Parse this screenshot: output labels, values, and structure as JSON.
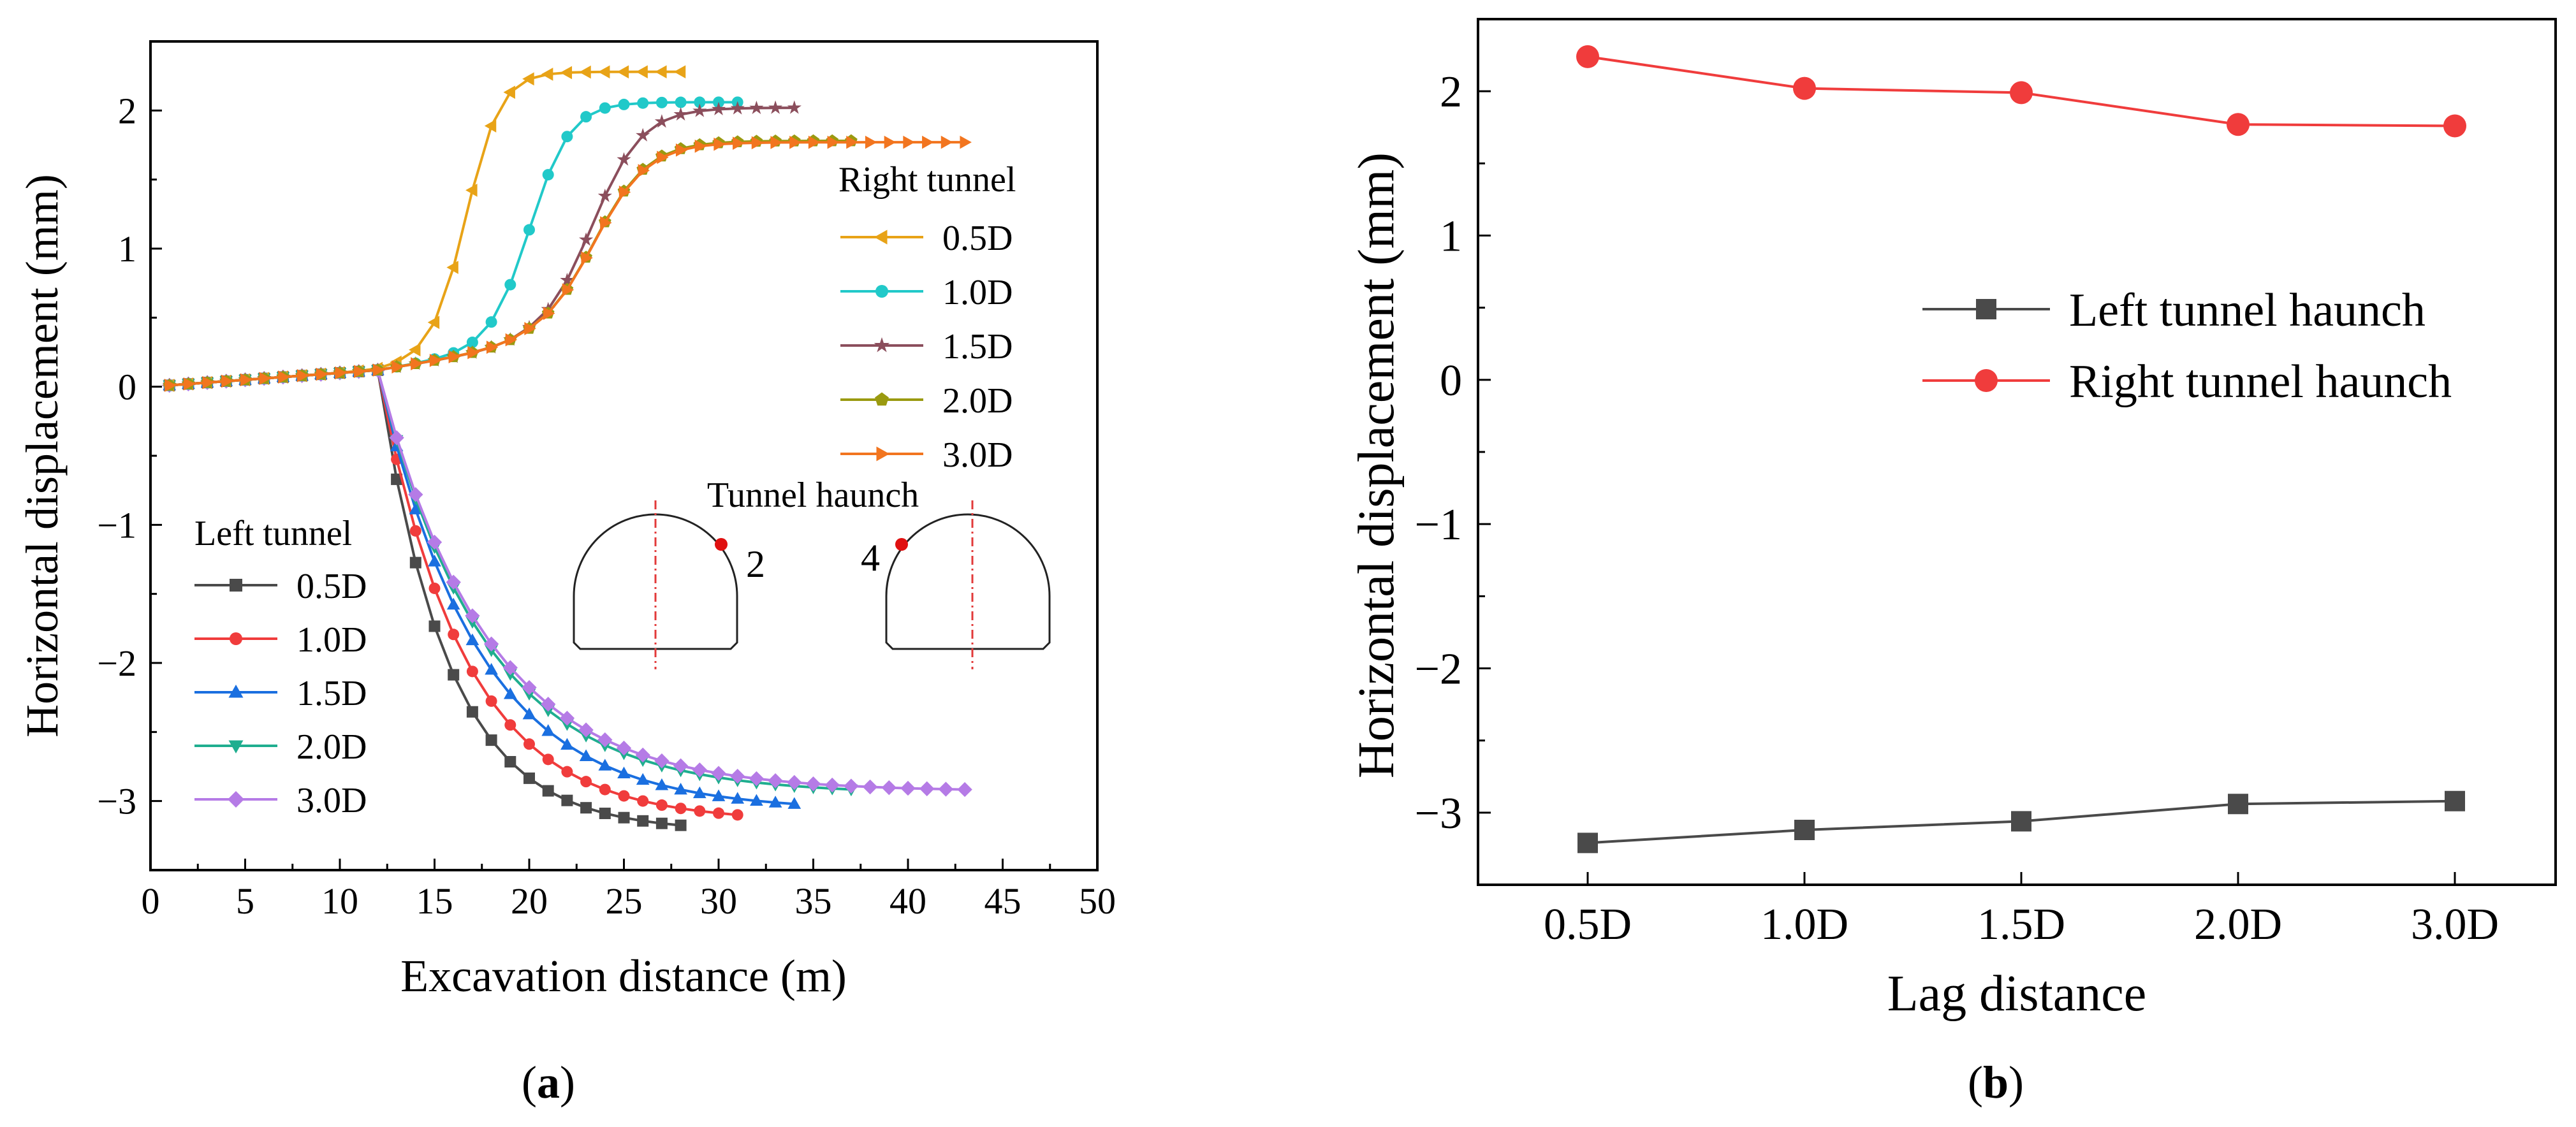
{
  "chart_data": [
    {
      "id": "a",
      "type": "line",
      "panel_label": "a",
      "xlabel": "Excavation distance (m)",
      "ylabel": "Horizontal displacement (mm)",
      "xlim": [
        0,
        50
      ],
      "ylim": [
        -3.5,
        2.5
      ],
      "xticks": [
        "0",
        "5",
        "10",
        "15",
        "20",
        "25",
        "30",
        "35",
        "40",
        "45",
        "50"
      ],
      "yticks": [
        "-3",
        "-2",
        "-1",
        "0",
        "1",
        "2"
      ],
      "grid": false,
      "legend_groups": [
        {
          "title": "Right tunnel",
          "entries": [
            "0.5D",
            "1.0D",
            "1.5D",
            "2.0D",
            "3.0D"
          ]
        },
        {
          "title": "Left tunnel",
          "entries": [
            "0.5D",
            "1.0D",
            "1.5D",
            "2.0D",
            "3.0D"
          ]
        }
      ],
      "annotation": {
        "title": "Tunnel haunch",
        "point_left": "2",
        "point_right": "4"
      },
      "series": [
        {
          "group": "Right tunnel",
          "name": "0.5D",
          "color": "#E8A317",
          "marker": "triangle-left",
          "end_x": 28,
          "shift": 15.2,
          "k": 1.1,
          "ymax": 2.28
        },
        {
          "group": "Right tunnel",
          "name": "1.0D",
          "color": "#21C9C9",
          "marker": "circle",
          "end_x": 31,
          "shift": 18.6,
          "k": 0.95,
          "ymax": 2.06
        },
        {
          "group": "Right tunnel",
          "name": "1.5D",
          "color": "#8B4E5C",
          "marker": "star",
          "end_x": 34,
          "shift": 21.8,
          "k": 0.75,
          "ymax": 2.02
        },
        {
          "group": "Right tunnel",
          "name": "2.0D",
          "color": "#9A9A10",
          "marker": "pentagon",
          "end_x": 37,
          "shift": 21.9,
          "k": 0.7,
          "ymax": 1.78
        },
        {
          "group": "Right tunnel",
          "name": "3.0D",
          "color": "#F2751F",
          "marker": "triangle-right",
          "end_x": 43,
          "shift": 21.9,
          "k": 0.7,
          "ymax": 1.77
        },
        {
          "group": "Left tunnel",
          "name": "0.5D",
          "color": "#4a4a4a",
          "marker": "square",
          "end_x": 28,
          "ymin": -3.22,
          "k": 0.27
        },
        {
          "group": "Left tunnel",
          "name": "1.0D",
          "color": "#F03C3C",
          "marker": "circle",
          "end_x": 31,
          "ymin": -3.15,
          "k": 0.22
        },
        {
          "group": "Left tunnel",
          "name": "1.5D",
          "color": "#1A6FE0",
          "marker": "triangle-up",
          "end_x": 34,
          "ymin": -3.07,
          "k": 0.19
        },
        {
          "group": "Left tunnel",
          "name": "2.0D",
          "color": "#1FAE8F",
          "marker": "triangle-down",
          "end_x": 37,
          "ymin": -2.95,
          "k": 0.18
        },
        {
          "group": "Left tunnel",
          "name": "3.0D",
          "color": "#B57BE6",
          "marker": "diamond",
          "end_x": 43,
          "ymin": -2.93,
          "k": 0.175
        }
      ]
    },
    {
      "id": "b",
      "type": "line",
      "panel_label": "b",
      "xlabel": "Lag distance",
      "ylabel": "Horizontal displacement (mm)",
      "categories": [
        "0.5D",
        "1.0D",
        "1.5D",
        "2.0D",
        "3.0D"
      ],
      "ylim": [
        -3.5,
        2.5
      ],
      "yticks": [
        "-3",
        "-2",
        "-1",
        "0",
        "1",
        "2"
      ],
      "grid": false,
      "legend": "center-right",
      "series": [
        {
          "name": "Left tunnel haunch",
          "color": "#4a4a4a",
          "marker": "square",
          "values": [
            -3.21,
            -3.12,
            -3.06,
            -2.94,
            -2.92
          ]
        },
        {
          "name": "Right tunnel haunch",
          "color": "#F03C3C",
          "marker": "circle",
          "values": [
            2.24,
            2.02,
            1.99,
            1.77,
            1.76
          ]
        }
      ]
    }
  ]
}
